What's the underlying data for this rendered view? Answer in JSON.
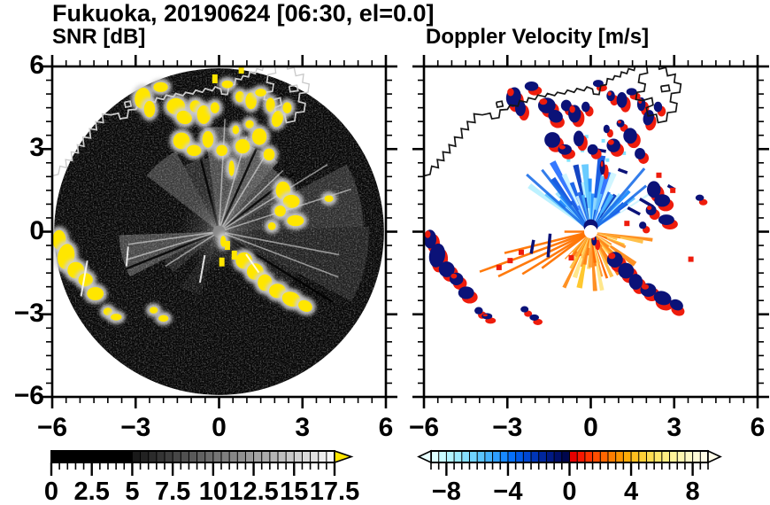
{
  "title": "Fukuoka, 20190624 [06:30, el=0.0]",
  "site": "Fukuoka",
  "date": "20190624",
  "time": "06:30",
  "elevation": "0.0",
  "colors": {
    "snr_overflow": "#ffe600",
    "navy": "#0b1278",
    "red": "#ee1c0c",
    "coast_left": "#ffffff",
    "coast_left_outside": "#c8c8c8",
    "coast_right": "#151515",
    "frame": "#000000"
  },
  "chart_data": [
    {
      "type": "heatmap",
      "title": "SNR [dB]",
      "xlabel": "",
      "ylabel": "",
      "xlim": [
        -6,
        6
      ],
      "ylim": [
        -6,
        6
      ],
      "x_major_ticks": [
        -6,
        -3,
        0,
        3,
        6
      ],
      "y_major_ticks": [
        6,
        3,
        0,
        -3,
        -6
      ],
      "x_tick_labels": [
        "−6",
        "−3",
        "0",
        "3",
        "6"
      ],
      "y_tick_labels": [
        "6",
        "3",
        "0",
        "−3",
        "−6"
      ],
      "minor_tick_interval": 0.5,
      "grid": false,
      "legend": "colorbar below, horizontal",
      "colorbar": {
        "range": [
          0,
          17.5
        ],
        "cell_step": 0.5,
        "tick_values": [
          0,
          2.5,
          5,
          7.5,
          10,
          12.5,
          15,
          17.5
        ],
        "tick_labels": [
          "0",
          "2.5",
          "5",
          "7.5",
          "10",
          "12.5",
          "15",
          "17.5"
        ],
        "ramp": "solid black 0-5 dB, discrete gray cells brightening to white at 17.5 dB",
        "overflow_arrow_color": "#ffe600"
      },
      "radar": {
        "disk_radius": 5.93,
        "disk_color": "#050505",
        "fans": [
          {
            "a0": -52,
            "a1": -28,
            "r": 3.3,
            "o": 0.22
          },
          {
            "a0": -28,
            "a1": -8,
            "r": 2.7,
            "o": 0.14
          },
          {
            "a0": -8,
            "a1": 12,
            "r": 3.8,
            "o": 0.28
          },
          {
            "a0": 12,
            "a1": 40,
            "r": 3.3,
            "o": 0.33
          },
          {
            "a0": 40,
            "a1": 62,
            "r": 3.0,
            "o": 0.25
          },
          {
            "a0": 62,
            "a1": 88,
            "r": 5.2,
            "o": 0.16
          },
          {
            "a0": 88,
            "a1": 118,
            "r": 5.4,
            "o": 0.11
          },
          {
            "a0": 118,
            "a1": 135,
            "r": 3.2,
            "o": 0.07
          },
          {
            "a0": 243,
            "a1": 268,
            "r": 3.6,
            "o": 0.26
          },
          {
            "a0": 228,
            "a1": 243,
            "r": 2.2,
            "o": 0.12
          },
          {
            "a0": 196,
            "a1": 214,
            "r": 2.4,
            "o": 0.06
          }
        ],
        "bright_rays": [
          [
            3,
            4.1
          ],
          [
            16,
            3.6
          ],
          [
            31,
            3.4
          ],
          [
            46,
            3.2
          ],
          [
            58,
            4.6
          ],
          [
            72,
            5.0
          ],
          [
            101,
            4.4
          ],
          [
            111,
            4.6
          ],
          [
            253,
            3.5
          ],
          [
            262,
            3.3
          ],
          [
            237,
            2.3
          ]
        ],
        "dark_rays": [
          [
            24,
            3.6
          ],
          [
            52,
            3.4
          ],
          [
            122,
            4.8
          ],
          [
            130,
            4.2
          ],
          [
            248,
            3.6
          ],
          [
            -14,
            3.0
          ]
        ],
        "white_slivers": [
          [
            -4.85,
            -1.7,
            1.3,
            100
          ],
          [
            -0.6,
            -1.35,
            1.0,
            100
          ],
          [
            1.2,
            -1.15,
            0.8,
            55
          ],
          [
            -3.3,
            -0.9,
            0.7,
            95
          ]
        ],
        "yellow_dashes": [
          [
            0.3,
            -0.5
          ],
          [
            0.55,
            -0.85
          ],
          [
            0.1,
            -1.1
          ],
          [
            -0.15,
            5.55
          ],
          [
            0.8,
            5.9
          ]
        ]
      }
    },
    {
      "type": "heatmap",
      "title": "Doppler Velocity [m/s]",
      "xlabel": "",
      "ylabel": "",
      "xlim": [
        -6,
        6
      ],
      "ylim": [
        -6,
        6
      ],
      "x_major_ticks": [
        -6,
        -3,
        0,
        3,
        6
      ],
      "y_major_ticks": [
        6,
        3,
        0,
        -3,
        -6
      ],
      "x_tick_labels": [
        "−6",
        "−3",
        "0",
        "3",
        "6"
      ],
      "y_tick_labels": [],
      "minor_tick_interval": 0.5,
      "grid": false,
      "legend": "colorbar below, horizontal, arrows both ends",
      "colorbar": {
        "range": [
          -9,
          9
        ],
        "cell_step": 0.5,
        "tick_values": [
          -8,
          -4,
          0,
          4,
          8
        ],
        "tick_labels": [
          "−8",
          "−4",
          "0",
          "4",
          "8"
        ],
        "arrow_low_color": "#e8ffff",
        "arrow_high_color": "#fffdea",
        "colors": [
          "#dcffff",
          "#c8fbff",
          "#b2f4ff",
          "#9cebff",
          "#86e0ff",
          "#70d3ff",
          "#5ac4ff",
          "#44b2ff",
          "#2e9eff",
          "#1888ff",
          "#0670fa",
          "#005ae8",
          "#0047d2",
          "#0036b8",
          "#00279e",
          "#001a84",
          "#000f69",
          "#00074d",
          "#e80000",
          "#f81800",
          "#ff3300",
          "#ff4d00",
          "#ff6600",
          "#ff7e00",
          "#ff9500",
          "#ffab08",
          "#ffbf1f",
          "#ffd038",
          "#ffdd52",
          "#ffe76b",
          "#ffee83",
          "#fff39a",
          "#fff7b0",
          "#fffac4",
          "#fffcd6",
          "#fffde6"
        ]
      },
      "radar": {
        "blue_fan": {
          "a0": -55,
          "a1": 58,
          "rmin": 1.2,
          "rmax": 2.9,
          "gap": 0.15
        },
        "blue_fan2": {
          "a0": -50,
          "a1": 54,
          "rmin": 0.5,
          "rmax": 1.7,
          "gap": 0.05
        },
        "orange_fan": {
          "a0": 96,
          "a1": 224,
          "rmin": 0.85,
          "rmax": 2.25,
          "gap": 0.12
        },
        "orange_fan2": {
          "a0": 100,
          "a1": 220,
          "rmin": 0.4,
          "rmax": 1.3,
          "gap": 0.05
        },
        "blue_palette": [
          "#b8f0ff",
          "#62c8ff",
          "#1e8cff",
          "#9fe4ff",
          "#0f55e0",
          "#5ec0ff",
          "#2b72ff",
          "#cdf4ff",
          "#1560e8",
          "#49b4ff",
          "#083bbf"
        ],
        "orange_palette": [
          "#ff8c1a",
          "#ffbe45",
          "#ffd96b",
          "#ff6a00",
          "#ffc627",
          "#ff9930",
          "#ffe687",
          "#ff7d12"
        ],
        "blue_rays": [
          [
            -48,
            3.1
          ],
          [
            -38,
            2.85
          ],
          [
            40,
            3.0
          ],
          [
            50,
            2.6
          ]
        ],
        "orange_rays": [
          [
            238,
            2.9
          ],
          [
            244,
            3.7
          ],
          [
            250,
            4.25
          ],
          [
            256,
            3.2
          ],
          [
            270,
            0.95
          ],
          [
            233,
            2.2
          ]
        ],
        "cyan_dots": [
          [
            0.1,
            3.1
          ],
          [
            0.45,
            3.3
          ],
          [
            -0.3,
            2.95
          ],
          [
            0.85,
            3.05
          ],
          [
            -0.8,
            2.6
          ],
          [
            1.2,
            2.85
          ],
          [
            -0.15,
            3.45
          ],
          [
            0.6,
            2.6
          ]
        ],
        "navy_slivers": [
          [
            1.55,
            0.75,
            0.5,
            28
          ],
          [
            2.0,
            1.05,
            0.55,
            30
          ],
          [
            2.45,
            1.35,
            0.4,
            28
          ],
          [
            -1.5,
            -0.5,
            0.85,
            95
          ],
          [
            -2.1,
            -0.55,
            0.5,
            100
          ],
          [
            0.35,
            2.95,
            0.4,
            10
          ],
          [
            2.9,
            1.6,
            0.3,
            30
          ],
          [
            1.15,
            2.2,
            0.35,
            20
          ]
        ],
        "red_dots": [
          [
            2.45,
            2.05
          ],
          [
            2.95,
            1.5
          ],
          [
            -2.9,
            -1.05
          ],
          [
            -3.3,
            -1.3
          ],
          [
            -2.5,
            -0.75
          ],
          [
            1.3,
            0.3
          ],
          [
            3.6,
            -1.0
          ],
          [
            -0.7,
            -0.95
          ]
        ]
      }
    }
  ],
  "shared": {
    "clutter_blobs": [
      [
        -2.75,
        4.85,
        0.28,
        0.38,
        10
      ],
      [
        -2.5,
        4.45,
        0.2,
        0.3,
        0
      ],
      [
        -2.1,
        5.25,
        0.26,
        0.18,
        0
      ],
      [
        -1.55,
        4.55,
        0.33,
        0.3,
        0
      ],
      [
        -1.25,
        4.15,
        0.28,
        0.24,
        20
      ],
      [
        -0.85,
        4.55,
        0.2,
        0.22,
        0
      ],
      [
        -0.55,
        4.25,
        0.24,
        0.34,
        0
      ],
      [
        -0.15,
        4.5,
        0.16,
        0.2,
        0
      ],
      [
        0.3,
        5.35,
        0.2,
        0.14,
        0
      ],
      [
        0.75,
        4.9,
        0.16,
        0.2,
        0
      ],
      [
        1.15,
        4.75,
        0.2,
        0.3,
        0
      ],
      [
        1.5,
        5.05,
        0.2,
        0.14,
        0
      ],
      [
        1.85,
        4.6,
        0.16,
        0.26,
        0
      ],
      [
        2.1,
        4.1,
        0.2,
        0.3,
        15
      ],
      [
        2.45,
        4.5,
        0.16,
        0.2,
        0
      ],
      [
        1.1,
        3.9,
        0.15,
        0.15,
        0
      ],
      [
        0.6,
        3.7,
        0.12,
        0.16,
        0
      ],
      [
        -1.35,
        3.3,
        0.3,
        0.3,
        0
      ],
      [
        -0.9,
        2.95,
        0.26,
        0.2,
        0
      ],
      [
        -0.4,
        3.35,
        0.2,
        0.3,
        0
      ],
      [
        0.1,
        2.95,
        0.2,
        0.2,
        0
      ],
      [
        0.85,
        3.1,
        0.26,
        0.26,
        0
      ],
      [
        1.45,
        3.45,
        0.26,
        0.3,
        0
      ],
      [
        1.8,
        2.8,
        0.2,
        0.22,
        0
      ],
      [
        0.45,
        2.3,
        0.1,
        0.28,
        0
      ],
      [
        2.3,
        1.5,
        0.26,
        0.32,
        0
      ],
      [
        2.6,
        1.1,
        0.3,
        0.24,
        0
      ],
      [
        2.2,
        0.75,
        0.2,
        0.2,
        0
      ],
      [
        2.75,
        0.4,
        0.3,
        0.2,
        0
      ],
      [
        1.9,
        0.2,
        0.14,
        0.14,
        0
      ],
      [
        -5.75,
        -0.3,
        0.24,
        0.36,
        0
      ],
      [
        -5.5,
        -0.9,
        0.3,
        0.46,
        10
      ],
      [
        -5.15,
        -1.4,
        0.3,
        0.3,
        0
      ],
      [
        -4.8,
        -1.75,
        0.26,
        0.24,
        0
      ],
      [
        -4.45,
        -2.25,
        0.3,
        0.24,
        0
      ],
      [
        -4.0,
        -2.9,
        0.16,
        0.14,
        0
      ],
      [
        -3.7,
        -3.1,
        0.2,
        0.12,
        0
      ],
      [
        -2.35,
        -2.85,
        0.15,
        0.12,
        0
      ],
      [
        -2.0,
        -3.15,
        0.18,
        0.12,
        0
      ],
      [
        0.9,
        -1.05,
        0.3,
        0.3,
        0
      ],
      [
        1.3,
        -1.45,
        0.3,
        0.3,
        0
      ],
      [
        1.65,
        -1.85,
        0.26,
        0.3,
        0
      ],
      [
        2.1,
        -2.15,
        0.3,
        0.26,
        0
      ],
      [
        2.6,
        -2.45,
        0.34,
        0.26,
        20
      ],
      [
        3.1,
        -2.7,
        0.26,
        0.2,
        25
      ],
      [
        0.15,
        -0.35,
        0.1,
        0.2,
        0
      ],
      [
        3.95,
        1.2,
        0.16,
        0.12,
        0
      ]
    ],
    "coastline": [
      [
        [
          -6.1,
          2.0
        ],
        [
          -5.78,
          2.08
        ],
        [
          -5.72,
          2.38
        ],
        [
          -5.48,
          2.32
        ],
        [
          -5.52,
          2.62
        ],
        [
          -5.28,
          2.58
        ],
        [
          -5.32,
          2.9
        ],
        [
          -5.06,
          2.86
        ],
        [
          -5.1,
          3.16
        ],
        [
          -4.86,
          3.1
        ],
        [
          -4.9,
          3.44
        ],
        [
          -4.62,
          3.4
        ],
        [
          -4.66,
          3.74
        ],
        [
          -4.4,
          3.7
        ],
        [
          -4.44,
          4.0
        ],
        [
          -4.16,
          3.96
        ],
        [
          -4.2,
          4.28
        ],
        [
          -3.9,
          4.24
        ],
        [
          -3.62,
          4.3
        ],
        [
          -3.56,
          4.1
        ],
        [
          -3.3,
          4.14
        ],
        [
          -3.26,
          4.42
        ],
        [
          -3.0,
          4.44
        ],
        [
          -2.9,
          4.6
        ],
        [
          -2.62,
          4.56
        ],
        [
          -2.56,
          4.76
        ],
        [
          -2.3,
          4.7
        ],
        [
          -2.24,
          4.86
        ],
        [
          -2.0,
          4.8
        ],
        [
          -1.9,
          4.96
        ],
        [
          -1.64,
          4.9
        ],
        [
          -1.56,
          5.02
        ],
        [
          -1.3,
          4.94
        ],
        [
          -1.2,
          5.06
        ],
        [
          -0.94,
          5.0
        ],
        [
          -0.84,
          5.14
        ],
        [
          -0.6,
          5.06
        ],
        [
          -0.5,
          5.2
        ],
        [
          -0.24,
          5.12
        ],
        [
          -0.14,
          5.26
        ],
        [
          0.06,
          5.18
        ],
        [
          0.1,
          5.0
        ],
        [
          0.3,
          4.98
        ],
        [
          0.36,
          5.3
        ],
        [
          0.56,
          5.34
        ],
        [
          0.6,
          5.56
        ],
        [
          0.8,
          5.52
        ],
        [
          0.86,
          5.66
        ],
        [
          1.06,
          5.62
        ],
        [
          1.1,
          5.8
        ],
        [
          1.3,
          5.74
        ],
        [
          1.36,
          5.92
        ],
        [
          1.56,
          5.86
        ],
        [
          1.62,
          6.12
        ]
      ],
      [
        [
          2.0,
          6.12
        ],
        [
          2.04,
          5.76
        ],
        [
          1.76,
          5.7
        ],
        [
          1.72,
          5.42
        ],
        [
          1.96,
          5.36
        ],
        [
          1.92,
          5.1
        ],
        [
          1.66,
          5.06
        ],
        [
          1.62,
          4.8
        ],
        [
          1.86,
          4.76
        ],
        [
          2.2,
          4.86
        ],
        [
          2.24,
          4.6
        ],
        [
          2.0,
          4.5
        ],
        [
          2.06,
          4.2
        ],
        [
          2.36,
          4.26
        ],
        [
          2.42,
          3.96
        ],
        [
          2.72,
          4.02
        ],
        [
          2.76,
          4.32
        ],
        [
          3.06,
          4.36
        ],
        [
          3.1,
          4.66
        ],
        [
          2.86,
          4.72
        ],
        [
          2.9,
          5.02
        ],
        [
          3.2,
          5.06
        ],
        [
          3.24,
          5.36
        ],
        [
          3.0,
          5.42
        ],
        [
          3.04,
          5.72
        ],
        [
          2.76,
          5.66
        ],
        [
          2.7,
          5.96
        ],
        [
          2.46,
          5.9
        ],
        [
          2.42,
          6.12
        ]
      ],
      [
        [
          2.52,
          5.28
        ],
        [
          2.8,
          5.32
        ],
        [
          2.84,
          5.12
        ],
        [
          2.56,
          5.08
        ],
        [
          2.52,
          5.28
        ]
      ],
      [
        [
          -3.4,
          4.7
        ],
        [
          -3.2,
          4.74
        ],
        [
          -3.16,
          4.56
        ],
        [
          -3.36,
          4.52
        ],
        [
          -3.4,
          4.7
        ]
      ]
    ]
  }
}
